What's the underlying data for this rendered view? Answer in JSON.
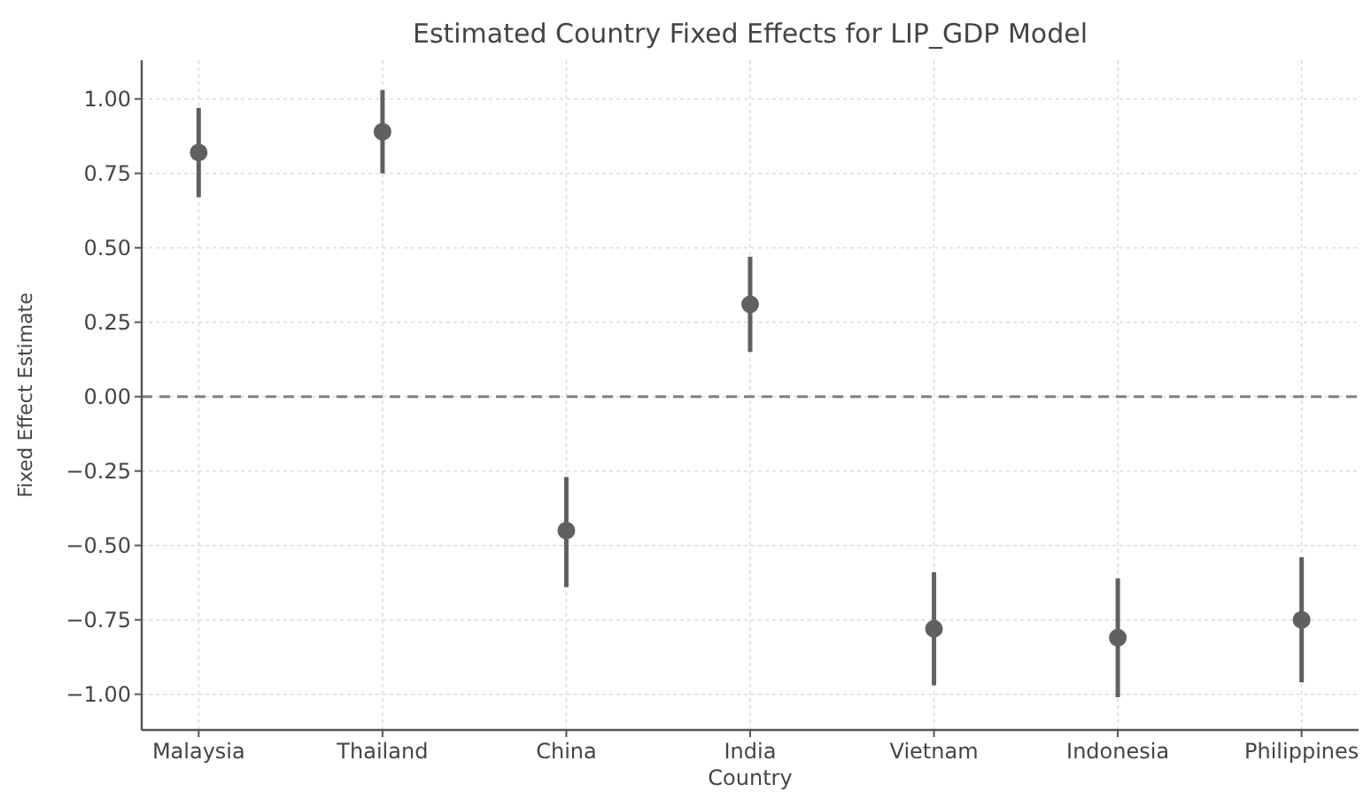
{
  "chart_data": {
    "type": "scatter",
    "title": "Estimated Country Fixed Effects for LIP_GDP Model",
    "xlabel": "Country",
    "ylabel": "Fixed Effect Estimate",
    "categories": [
      "Malaysia",
      "Thailand",
      "China",
      "India",
      "Vietnam",
      "Indonesia",
      "Philippines"
    ],
    "values": [
      0.82,
      0.89,
      -0.45,
      0.31,
      -0.78,
      -0.81,
      -0.75
    ],
    "errors": [
      [
        0.67,
        0.97
      ],
      [
        0.75,
        1.03
      ],
      [
        -0.64,
        -0.27
      ],
      [
        0.15,
        0.47
      ],
      [
        -0.97,
        -0.59
      ],
      [
        -1.01,
        -0.61
      ],
      [
        -0.96,
        -0.54
      ]
    ],
    "color": "#606060",
    "marker": "circle",
    "ylim": [
      -1.12,
      1.13
    ],
    "yticks": [
      {
        "value": -1,
        "label": "−1.00"
      },
      {
        "value": -0.75,
        "label": "−0.75"
      },
      {
        "value": -0.5,
        "label": "−0.50"
      },
      {
        "value": -0.25,
        "label": "−0.25"
      },
      {
        "value": 0,
        "label": "0.00"
      },
      {
        "value": 0.25,
        "label": "0.25"
      },
      {
        "value": 0.5,
        "label": "0.50"
      },
      {
        "value": 0.75,
        "label": "0.75"
      },
      {
        "value": 1,
        "label": "1.00"
      }
    ],
    "ref_lines": [
      {
        "axis": "y",
        "value": 0,
        "color": "#808080",
        "line_style": "dashed"
      }
    ],
    "grid": true
  }
}
